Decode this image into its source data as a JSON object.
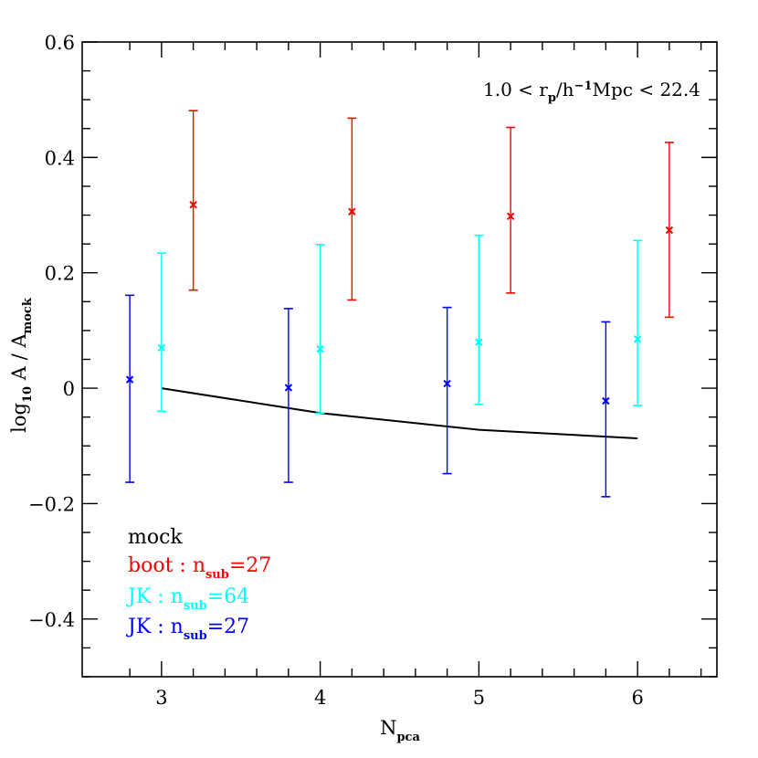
{
  "chart_data": {
    "type": "scatter",
    "xlabel_main": "N",
    "xlabel_sub": "pca",
    "ylabel_main": "log",
    "ylabel_sub1": "10",
    "ylabel_mid": " A / A",
    "ylabel_sub2": "mock",
    "xlim": [
      2.5,
      6.5
    ],
    "ylim": [
      -0.5,
      0.6
    ],
    "x_ticks": [
      3,
      4,
      5,
      6
    ],
    "x_tick_labels": [
      "3",
      "4",
      "5",
      "6"
    ],
    "y_ticks": [
      -0.4,
      -0.2,
      0,
      0.2,
      0.4,
      0.6
    ],
    "y_tick_labels": [
      "−0.4",
      "−0.2",
      "0",
      "0.2",
      "0.4",
      "0.6"
    ],
    "annotation": {
      "part1": "1.0 < r",
      "sub": "p",
      "part2": "/h",
      "sup": "−1",
      "part3": "Mpc < 22.4"
    },
    "series": [
      {
        "name": "mock",
        "style": "line",
        "color": "#000000",
        "x": [
          3.0,
          4.0,
          5.0,
          6.0
        ],
        "y": [
          0.0,
          -0.043,
          -0.072,
          -0.087
        ]
      },
      {
        "name": "boot",
        "style": "errorbar",
        "color": "#ff0000",
        "x": [
          3.2,
          4.2,
          5.2,
          6.2
        ],
        "y": [
          0.318,
          0.306,
          0.298,
          0.274
        ],
        "yerr_low": [
          0.17,
          0.153,
          0.165,
          0.123
        ],
        "yerr_high": [
          0.481,
          0.468,
          0.452,
          0.426
        ]
      },
      {
        "name": "JK64",
        "style": "errorbar",
        "color": "#00ffff",
        "x": [
          3.0,
          4.0,
          5.0,
          6.0
        ],
        "y": [
          0.07,
          0.068,
          0.08,
          0.085
        ],
        "yerr_low": [
          -0.04,
          -0.043,
          -0.028,
          -0.03
        ],
        "yerr_high": [
          0.234,
          0.249,
          0.265,
          0.256
        ]
      },
      {
        "name": "JK27",
        "style": "errorbar",
        "color": "#0000ff",
        "x": [
          2.8,
          3.8,
          4.8,
          5.8
        ],
        "y": [
          0.015,
          0.001,
          0.008,
          -0.022
        ],
        "yerr_low": [
          -0.163,
          -0.163,
          -0.148,
          -0.188
        ],
        "yerr_high": [
          0.161,
          0.138,
          0.14,
          0.115
        ]
      }
    ],
    "legend": {
      "position": "bottom-left",
      "entries": [
        {
          "main": "mock",
          "sub": "",
          "rest": "",
          "color": "#000000"
        },
        {
          "main": "boot : n",
          "sub": "sub",
          "rest": "=27",
          "color": "#ff0000"
        },
        {
          "main": "JK : n",
          "sub": "sub",
          "rest": "=64",
          "color": "#00ffff"
        },
        {
          "main": "JK : n",
          "sub": "sub",
          "rest": "=27",
          "color": "#0000ff"
        }
      ]
    }
  }
}
